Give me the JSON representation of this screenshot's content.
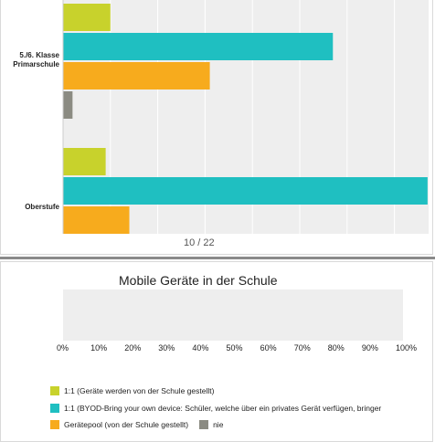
{
  "colors": {
    "series_1": "#c8d22c",
    "series_2": "#1fbfc1",
    "series_3": "#f7ab1d",
    "series_4": "#8b8b82",
    "grid": "#ffffff",
    "plot_bg": "#eeeeee"
  },
  "page_indicator": "10 / 22",
  "chart_data": [
    {
      "type": "bar",
      "orientation": "horizontal",
      "categories": [
        "5./6. Klasse\nPrimarschule",
        "Oberstufe"
      ],
      "series": [
        {
          "name": "1:1 (Geräte werden von der Schule gestellt)",
          "values": [
            10,
            9
          ]
        },
        {
          "name": "1:1 (BYOD-Bring your own device: Schüler, welche über ein privates Gerät verfügen, bringen",
          "values": [
            57,
            77
          ]
        },
        {
          "name": "Gerätepool (von der Schule gestellt)",
          "values": [
            31,
            14
          ]
        },
        {
          "name": "nie",
          "values": [
            2,
            null
          ]
        }
      ],
      "xlim": [
        0,
        100
      ],
      "grid": true
    },
    {
      "type": "bar",
      "orientation": "horizontal",
      "title": "Mobile Geräte in der Schule",
      "xlim": [
        0,
        100
      ],
      "xticks": [
        "0%",
        "10%",
        "20%",
        "30%",
        "40%",
        "50%",
        "60%",
        "70%",
        "80%",
        "90%",
        "100%"
      ],
      "legend_position": "bottom",
      "legend": [
        "1:1 (Geräte werden von der Schule gestellt)",
        "1:1 (BYOD-Bring your own device: Schüler, welche über ein privates Gerät verfügen, bringer",
        "Gerätepool (von der Schule gestellt)",
        "nie"
      ],
      "visible_bar_value": 14
    }
  ]
}
